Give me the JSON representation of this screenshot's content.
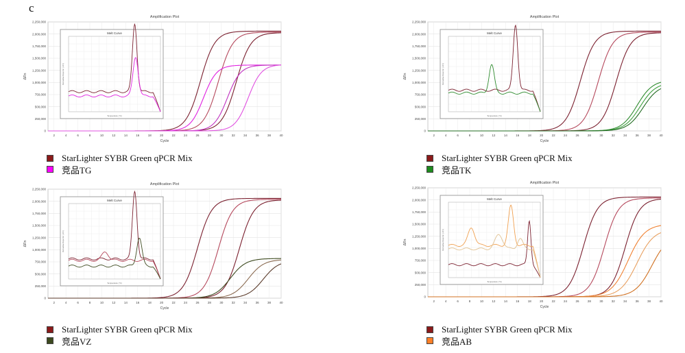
{
  "panel_label": "c",
  "colors": {
    "ref": "#7a1f2e",
    "ref_light": "#b5485c"
  },
  "chart_data": [
    {
      "type": "line",
      "title": "Amplification Plot",
      "xlabel": "Cycle",
      "ylabel": "ΔRn",
      "xlim": [
        1,
        40
      ],
      "ylim": [
        0,
        2250000
      ],
      "xticks": [
        "2",
        "4",
        "6",
        "8",
        "10",
        "12",
        "14",
        "16",
        "18",
        "20",
        "22",
        "24",
        "26",
        "28",
        "30",
        "32",
        "34",
        "36",
        "38",
        "40"
      ],
      "yticks": [
        "0",
        "250,000",
        "500,000",
        "750,000",
        "1,000,000",
        "1,250,000",
        "1,500,000",
        "1,750,000",
        "2,000,000",
        "2,250,000"
      ],
      "series": [
        {
          "name": "StarLighter SYBR Green qPCR Mix",
          "color": "#7a1f2e",
          "mid": 26.5,
          "plateau": 2060000,
          "slope": 1.2
        },
        {
          "name": "StarLighter SYBR Green qPCR Mix",
          "color": "#b5485c",
          "mid": 29.5,
          "plateau": 2040000,
          "slope": 1.2
        },
        {
          "name": "StarLighter SYBR Green qPCR Mix",
          "color": "#7a1f2e",
          "mid": 32.5,
          "plateau": 2030000,
          "slope": 1.2
        },
        {
          "name": "竞品TG",
          "color": "#e020e0",
          "mid": 27.0,
          "plateau": 1360000,
          "slope": 1.1
        },
        {
          "name": "竞品TG",
          "color": "#c030c0",
          "mid": 31.0,
          "plateau": 1360000,
          "slope": 1.1
        },
        {
          "name": "竞品TG",
          "color": "#e050e0",
          "mid": 34.5,
          "plateau": 1370000,
          "slope": 1.1
        }
      ],
      "inset": {
        "title": "Melt Curve",
        "xlabel": "Temperature (°C)",
        "ylabel": "Derivative Reporter (-Rn')",
        "series": [
          {
            "color": "#7a1f2e",
            "base": 0.28,
            "peaks": [
              {
                "x": 0.72,
                "h": 0.95,
                "w": 0.035
              }
            ]
          },
          {
            "color": "#e020e0",
            "base": 0.22,
            "peaks": [
              {
                "x": 0.73,
                "h": 0.55,
                "w": 0.04
              }
            ]
          }
        ]
      },
      "legend": [
        {
          "label": "StarLighter SYBR Green qPCR Mix",
          "color": "#8b1a1a"
        },
        {
          "label": "竞品TG",
          "color": "#ff00ff"
        }
      ]
    },
    {
      "type": "line",
      "title": "Amplification Plot",
      "xlabel": "Cycle",
      "ylabel": "ΔRn",
      "xlim": [
        1,
        40
      ],
      "ylim": [
        0,
        2250000
      ],
      "xticks": [
        "2",
        "4",
        "6",
        "8",
        "10",
        "12",
        "14",
        "16",
        "18",
        "20",
        "22",
        "24",
        "26",
        "28",
        "30",
        "32",
        "34",
        "36",
        "38",
        "40"
      ],
      "yticks": [
        "0",
        "250,000",
        "500,000",
        "750,000",
        "1,000,000",
        "1,250,000",
        "1,500,000",
        "1,750,000",
        "2,000,000",
        "2,250,000"
      ],
      "series": [
        {
          "name": "StarLighter SYBR Green qPCR Mix",
          "color": "#7a1f2e",
          "mid": 26.5,
          "plateau": 2060000,
          "slope": 1.2
        },
        {
          "name": "StarLighter SYBR Green qPCR Mix",
          "color": "#b5485c",
          "mid": 29.5,
          "plateau": 2040000,
          "slope": 1.2
        },
        {
          "name": "StarLighter SYBR Green qPCR Mix",
          "color": "#7a1f2e",
          "mid": 32.5,
          "plateau": 2030000,
          "slope": 1.2
        },
        {
          "name": "竞品TK",
          "color": "#2e8b2e",
          "mid": 36.0,
          "plateau": 1050000,
          "slope": 1.3
        },
        {
          "name": "竞品TK",
          "color": "#3fa03f",
          "mid": 36.5,
          "plateau": 1000000,
          "slope": 1.3
        },
        {
          "name": "竞品TK",
          "color": "#226b22",
          "mid": 37.0,
          "plateau": 960000,
          "slope": 1.3
        }
      ],
      "inset": {
        "title": "Melt Curve",
        "xlabel": "Temperature (°C)",
        "ylabel": "Derivative Reporter (-Rn')",
        "series": [
          {
            "color": "#7a1f2e",
            "base": 0.3,
            "peaks": [
              {
                "x": 0.73,
                "h": 0.92,
                "w": 0.035
              }
            ]
          },
          {
            "color": "#2e8b2e",
            "base": 0.26,
            "peaks": [
              {
                "x": 0.47,
                "h": 0.4,
                "w": 0.04
              }
            ]
          }
        ]
      },
      "legend": [
        {
          "label": "StarLighter SYBR Green qPCR Mix",
          "color": "#8b1a1a"
        },
        {
          "label": "竞品TK",
          "color": "#1e8b1e"
        }
      ]
    },
    {
      "type": "line",
      "title": "Amplification Plot",
      "xlabel": "Cycle",
      "ylabel": "ΔRn",
      "xlim": [
        1,
        40
      ],
      "ylim": [
        0,
        2250000
      ],
      "xticks": [
        "2",
        "4",
        "6",
        "8",
        "10",
        "12",
        "14",
        "16",
        "18",
        "20",
        "22",
        "24",
        "26",
        "28",
        "30",
        "32",
        "34",
        "36",
        "38",
        "40"
      ],
      "yticks": [
        "0",
        "250,000",
        "500,000",
        "750,000",
        "1,000,000",
        "1,250,000",
        "1,500,000",
        "1,750,000",
        "2,000,000",
        "2,250,000"
      ],
      "series": [
        {
          "name": "StarLighter SYBR Green qPCR Mix",
          "color": "#7a1f2e",
          "mid": 26.0,
          "plateau": 2060000,
          "slope": 1.2
        },
        {
          "name": "StarLighter SYBR Green qPCR Mix",
          "color": "#b5485c",
          "mid": 29.5,
          "plateau": 2040000,
          "slope": 1.2
        },
        {
          "name": "StarLighter SYBR Green qPCR Mix",
          "color": "#7a1f2e",
          "mid": 33.0,
          "plateau": 2030000,
          "slope": 1.2
        },
        {
          "name": "竞品VZ",
          "color": "#3d4a1f",
          "mid": 31.5,
          "plateau": 820000,
          "slope": 1.3
        },
        {
          "name": "竞品VZ",
          "color": "#8a6a50",
          "mid": 34.5,
          "plateau": 800000,
          "slope": 1.3
        },
        {
          "name": "竞品VZ",
          "color": "#5a3a2a",
          "mid": 37.0,
          "plateau": 780000,
          "slope": 1.3
        }
      ],
      "inset": {
        "title": "Melt Curve",
        "xlabel": "Temperature (°C)",
        "ylabel": "Derivative Reporter (-Rn')",
        "series": [
          {
            "color": "#7a1f2e",
            "base": 0.28,
            "peaks": [
              {
                "x": 0.72,
                "h": 0.95,
                "w": 0.035
              }
            ]
          },
          {
            "color": "#b5485c",
            "base": 0.26,
            "peaks": [
              {
                "x": 0.4,
                "h": 0.12,
                "w": 0.05
              }
            ]
          },
          {
            "color": "#3d4a1f",
            "base": 0.18,
            "peaks": [
              {
                "x": 0.77,
                "h": 0.4,
                "w": 0.04
              }
            ]
          }
        ]
      },
      "legend": [
        {
          "label": "StarLighter SYBR Green qPCR Mix",
          "color": "#8b1a1a"
        },
        {
          "label": "竞品VZ",
          "color": "#3d4a1f"
        }
      ]
    },
    {
      "type": "line",
      "title": "Amplification Plot",
      "xlabel": "Cycle",
      "ylabel": "ΔRn",
      "xlim": [
        1,
        40
      ],
      "ylim": [
        0,
        2250000
      ],
      "xticks": [
        "2",
        "4",
        "6",
        "8",
        "10",
        "12",
        "14",
        "16",
        "18",
        "20",
        "22",
        "24",
        "26",
        "28",
        "30",
        "32",
        "34",
        "36",
        "38",
        "40"
      ],
      "yticks": [
        "0",
        "250,000",
        "500,000",
        "750,000",
        "1,000,000",
        "1,250,000",
        "1,500,000",
        "1,750,000",
        "2,000,000",
        "2,250,000"
      ],
      "series": [
        {
          "name": "StarLighter SYBR Green qPCR Mix",
          "color": "#7a1f2e",
          "mid": 27.0,
          "plateau": 2060000,
          "slope": 1.2
        },
        {
          "name": "StarLighter SYBR Green qPCR Mix",
          "color": "#b5485c",
          "mid": 30.5,
          "plateau": 2040000,
          "slope": 1.2
        },
        {
          "name": "StarLighter SYBR Green qPCR Mix",
          "color": "#7a1f2e",
          "mid": 34.0,
          "plateau": 2030000,
          "slope": 1.2
        },
        {
          "name": "竞品AB",
          "color": "#f08030",
          "mid": 34.5,
          "plateau": 1500000,
          "slope": 1.4
        },
        {
          "name": "竞品AB",
          "color": "#e8a060",
          "mid": 36.0,
          "plateau": 1400000,
          "slope": 1.4
        },
        {
          "name": "竞品AB",
          "color": "#d07020",
          "mid": 38.5,
          "plateau": 1300000,
          "slope": 1.4
        }
      ],
      "inset": {
        "title": "Melt Curve",
        "xlabel": "Temperature (°C)",
        "ylabel": "Derivative Reporter (-Rn')",
        "series": [
          {
            "color": "#7a1f2e",
            "base": 0.18,
            "peaks": [
              {
                "x": 0.88,
                "h": 0.62,
                "w": 0.025
              }
            ]
          },
          {
            "color": "#f0a050",
            "base": 0.45,
            "peaks": [
              {
                "x": 0.68,
                "h": 0.55,
                "w": 0.04
              },
              {
                "x": 0.25,
                "h": 0.25,
                "w": 0.05
              }
            ]
          },
          {
            "color": "#e0c090",
            "base": 0.4,
            "peaks": [
              {
                "x": 0.55,
                "h": 0.2,
                "w": 0.06
              },
              {
                "x": 0.78,
                "h": 0.15,
                "w": 0.04
              }
            ]
          }
        ]
      },
      "legend": [
        {
          "label": "StarLighter SYBR Green qPCR Mix",
          "color": "#8b1a1a"
        },
        {
          "label": "竞品AB",
          "color": "#ff7f27"
        }
      ]
    }
  ]
}
